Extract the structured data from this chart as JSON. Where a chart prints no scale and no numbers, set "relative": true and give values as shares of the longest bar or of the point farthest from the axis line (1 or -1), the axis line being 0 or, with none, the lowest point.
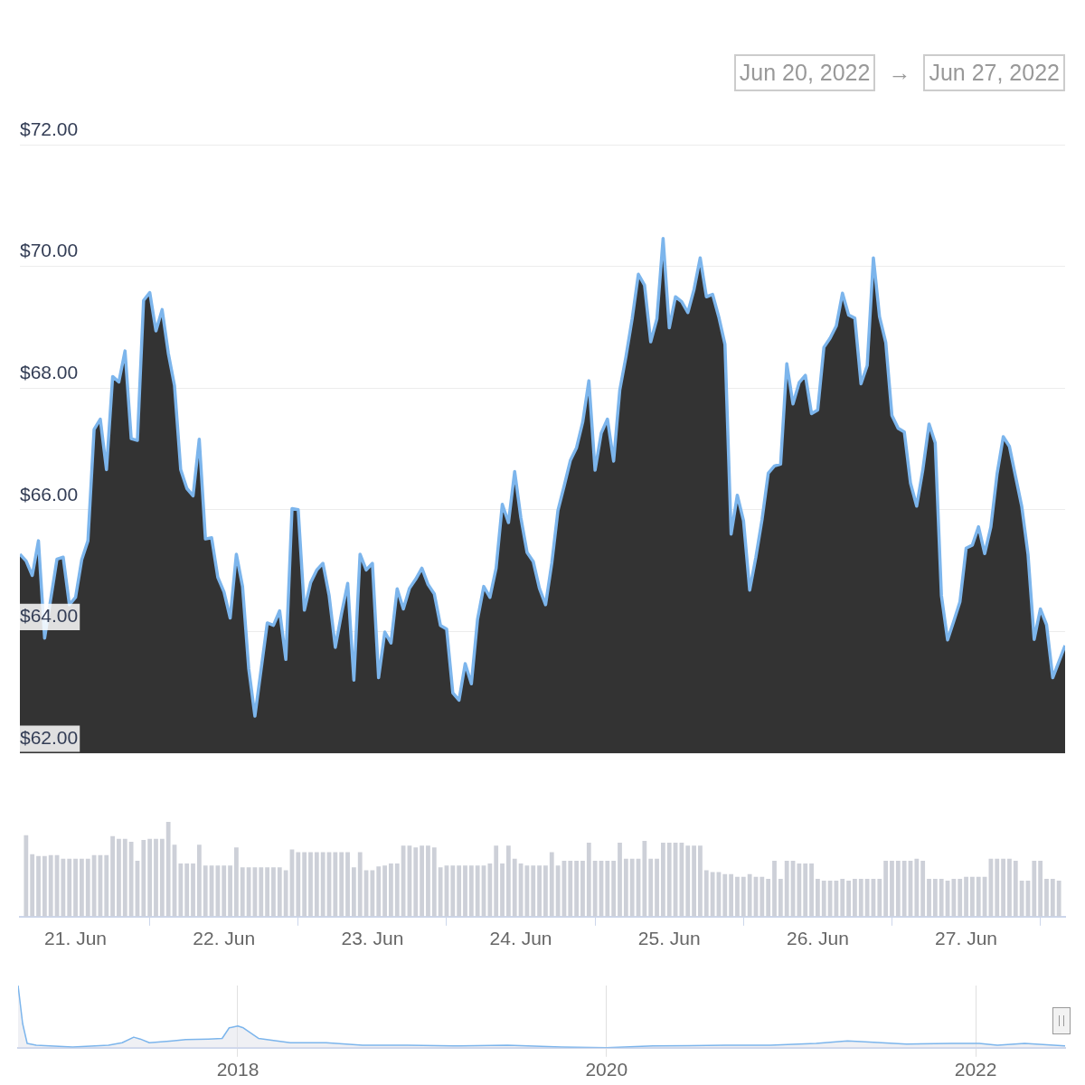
{
  "chart_data": [
    {
      "type": "area",
      "annotations": [
        "Jun 20, 2022",
        "→",
        "Jun 27, 2022"
      ],
      "color": "#7cb5ec",
      "x": [
        "2022-06-20T15:00",
        "2022-06-20T16:00",
        "2022-06-20T17:00",
        "2022-06-20T18:00",
        "2022-06-20T19:00",
        "2022-06-20T21:00",
        "2022-06-20T22:00",
        "2022-06-20T23:00",
        "2022-06-21T00:00",
        "2022-06-21T01:00",
        "2022-06-21T02:00",
        "2022-06-21T03:00",
        "2022-06-21T04:00",
        "2022-06-21T05:00",
        "2022-06-21T06:00",
        "2022-06-21T07:00",
        "2022-06-21T08:00",
        "2022-06-21T09:00",
        "2022-06-21T10:00",
        "2022-06-21T11:00",
        "2022-06-21T12:00",
        "2022-06-21T13:00",
        "2022-06-21T14:00",
        "2022-06-21T15:00",
        "2022-06-21T16:00",
        "2022-06-21T17:00",
        "2022-06-21T18:00",
        "2022-06-21T19:00",
        "2022-06-21T20:00",
        "2022-06-21T21:00",
        "2022-06-21T22:00",
        "2022-06-21T23:00",
        "2022-06-22T00:00",
        "2022-06-22T01:00",
        "2022-06-22T02:00",
        "2022-06-22T03:00",
        "2022-06-22T04:00",
        "2022-06-22T05:00",
        "2022-06-22T07:00",
        "2022-06-22T08:00",
        "2022-06-22T09:00",
        "2022-06-22T10:00",
        "2022-06-22T11:00",
        "2022-06-22T12:00",
        "2022-06-22T13:00",
        "2022-06-22T14:00",
        "2022-06-22T15:00",
        "2022-06-22T16:00",
        "2022-06-22T17:00",
        "2022-06-22T18:00",
        "2022-06-22T19:00",
        "2022-06-22T20:00",
        "2022-06-22T21:00",
        "2022-06-22T22:00",
        "2022-06-22T23:00",
        "2022-06-23T00:00",
        "2022-06-23T01:00",
        "2022-06-23T02:00",
        "2022-06-23T03:00",
        "2022-06-23T04:00",
        "2022-06-23T05:00",
        "2022-06-23T06:00",
        "2022-06-23T07:00",
        "2022-06-23T08:00",
        "2022-06-23T09:00",
        "2022-06-23T10:00",
        "2022-06-23T11:00",
        "2022-06-23T12:00",
        "2022-06-23T13:00",
        "2022-06-23T14:00",
        "2022-06-23T15:00",
        "2022-06-23T16:00",
        "2022-06-23T17:00",
        "2022-06-23T18:00",
        "2022-06-23T19:00",
        "2022-06-23T20:00",
        "2022-06-23T21:00",
        "2022-06-23T22:00",
        "2022-06-23T23:00",
        "2022-06-24T00:00",
        "2022-06-24T01:00",
        "2022-06-24T02:00",
        "2022-06-24T03:00",
        "2022-06-24T04:00",
        "2022-06-24T05:00",
        "2022-06-24T06:00",
        "2022-06-24T07:00",
        "2022-06-24T08:00",
        "2022-06-24T09:00",
        "2022-06-24T10:00",
        "2022-06-24T11:00",
        "2022-06-24T12:00",
        "2022-06-24T13:00",
        "2022-06-24T14:00",
        "2022-06-24T15:00",
        "2022-06-24T16:00",
        "2022-06-24T17:00",
        "2022-06-24T18:00",
        "2022-06-24T19:00",
        "2022-06-24T20:00",
        "2022-06-24T21:00",
        "2022-06-24T22:00",
        "2022-06-24T23:00",
        "2022-06-25T00:00",
        "2022-06-25T01:00",
        "2022-06-25T02:00",
        "2022-06-25T03:00",
        "2022-06-25T04:00",
        "2022-06-25T05:00",
        "2022-06-25T06:00",
        "2022-06-25T07:00",
        "2022-06-25T08:00",
        "2022-06-25T09:00",
        "2022-06-25T10:00",
        "2022-06-25T11:00",
        "2022-06-25T12:00",
        "2022-06-25T13:00",
        "2022-06-25T14:00",
        "2022-06-25T15:00",
        "2022-06-25T16:00",
        "2022-06-25T17:00",
        "2022-06-25T18:00",
        "2022-06-25T19:00",
        "2022-06-25T20:00",
        "2022-06-25T21:00",
        "2022-06-25T22:00",
        "2022-06-25T23:00",
        "2022-06-26T00:00",
        "2022-06-26T01:00",
        "2022-06-26T02:00",
        "2022-06-26T03:00",
        "2022-06-26T04:00",
        "2022-06-26T05:00",
        "2022-06-26T06:00",
        "2022-06-26T07:00",
        "2022-06-26T08:00",
        "2022-06-26T09:00",
        "2022-06-26T10:00",
        "2022-06-26T11:00",
        "2022-06-26T12:00",
        "2022-06-26T13:00",
        "2022-06-26T14:00",
        "2022-06-26T15:00",
        "2022-06-26T16:00",
        "2022-06-26T17:00",
        "2022-06-26T18:00",
        "2022-06-26T19:00",
        "2022-06-26T20:00",
        "2022-06-26T21:00",
        "2022-06-26T22:00",
        "2022-06-26T23:00",
        "2022-06-27T00:00",
        "2022-06-27T01:00",
        "2022-06-27T02:00",
        "2022-06-27T03:00",
        "2022-06-27T04:00",
        "2022-06-27T05:00",
        "2022-06-27T06:00",
        "2022-06-27T07:00",
        "2022-06-27T08:00",
        "2022-06-27T09:00",
        "2022-06-27T10:00",
        "2022-06-27T11:00",
        "2022-06-27T12:00",
        "2022-06-27T13:00",
        "2022-06-27T14:00",
        "2022-06-27T16:00"
      ],
      "values": [
        65.27,
        65.16,
        64.92,
        65.49,
        63.89,
        65.19,
        65.22,
        64.44,
        64.56,
        65.18,
        65.49,
        67.32,
        67.49,
        66.66,
        68.19,
        68.1,
        68.61,
        67.17,
        67.14,
        69.44,
        69.57,
        68.94,
        69.29,
        68.57,
        68.04,
        66.66,
        66.35,
        66.23,
        67.16,
        65.52,
        65.54,
        64.89,
        64.65,
        64.22,
        65.27,
        64.74,
        63.39,
        62.61,
        64.14,
        64.1,
        64.34,
        63.54,
        66.02,
        66.0,
        64.35,
        64.8,
        65.01,
        65.12,
        64.59,
        63.74,
        64.29,
        64.79,
        63.2,
        65.27,
        65.01,
        65.12,
        63.24,
        63.99,
        63.81,
        64.7,
        64.37,
        64.71,
        64.86,
        65.04,
        64.77,
        64.62,
        64.1,
        64.04,
        62.99,
        62.87,
        63.47,
        63.14,
        64.2,
        64.74,
        64.56,
        65.04,
        66.09,
        65.79,
        66.63,
        65.87,
        65.3,
        65.15,
        64.71,
        64.44,
        65.12,
        65.99,
        66.39,
        66.81,
        67.02,
        67.44,
        68.12,
        66.65,
        67.26,
        67.49,
        66.8,
        67.97,
        68.52,
        69.14,
        69.87,
        69.69,
        68.76,
        69.14,
        70.46,
        68.99,
        69.5,
        69.42,
        69.24,
        69.62,
        70.14,
        69.5,
        69.54,
        69.17,
        68.72,
        65.6,
        66.24,
        65.82,
        64.68,
        65.22,
        65.84,
        66.6,
        66.72,
        66.75,
        68.4,
        67.74,
        68.09,
        68.21,
        67.58,
        67.64,
        68.67,
        68.82,
        69.02,
        69.56,
        69.2,
        69.15,
        68.07,
        68.37,
        70.14,
        69.17,
        68.75,
        67.55,
        67.34,
        67.28,
        66.44,
        66.06,
        66.66,
        67.41,
        67.1,
        64.59,
        63.86,
        64.17,
        64.49,
        65.37,
        65.42,
        65.72,
        65.28,
        65.72,
        66.59,
        67.2,
        67.04,
        66.54,
        66.05,
        65.27,
        63.87,
        64.37,
        64.11,
        63.24,
        63.77
      ],
      "xlim": [
        "2022-06-20T15:00",
        "2022-06-27T16:00"
      ],
      "ylim": [
        62,
        72
      ],
      "yticks": [
        {
          "value": 62,
          "label": "$62.00"
        },
        {
          "value": 64,
          "label": "$64.00"
        },
        {
          "value": 66,
          "label": "$66.00"
        },
        {
          "value": 68,
          "label": "$68.00"
        },
        {
          "value": 70,
          "label": "$70.00"
        },
        {
          "value": 72,
          "label": "$72.00"
        }
      ],
      "grid": "y",
      "tick_labels": "y"
    },
    {
      "type": "bar",
      "relative": true,
      "color": "#cdd0d8",
      "x": [
        "2022-06-20T16:00",
        "2022-06-20T17:00",
        "2022-06-20T18:00",
        "2022-06-20T19:00",
        "2022-06-20T20:00",
        "2022-06-20T21:00",
        "2022-06-20T22:00",
        "2022-06-20T23:00",
        "2022-06-21T00:00",
        "2022-06-21T01:00",
        "2022-06-21T02:00",
        "2022-06-21T03:00",
        "2022-06-21T04:00",
        "2022-06-21T05:00",
        "2022-06-21T06:00",
        "2022-06-21T07:00",
        "2022-06-21T08:00",
        "2022-06-21T09:00",
        "2022-06-21T10:00",
        "2022-06-21T11:00",
        "2022-06-21T12:00",
        "2022-06-21T13:00",
        "2022-06-21T14:00",
        "2022-06-21T15:00",
        "2022-06-21T16:00",
        "2022-06-21T17:00",
        "2022-06-21T18:00",
        "2022-06-21T19:00",
        "2022-06-21T20:00",
        "2022-06-21T21:00",
        "2022-06-21T22:00",
        "2022-06-21T23:00",
        "2022-06-22T00:00",
        "2022-06-22T01:00",
        "2022-06-22T02:00",
        "2022-06-22T03:00",
        "2022-06-22T04:00",
        "2022-06-22T05:00",
        "2022-06-22T06:00",
        "2022-06-22T07:00",
        "2022-06-22T08:00",
        "2022-06-22T09:00",
        "2022-06-22T10:00",
        "2022-06-22T11:00",
        "2022-06-22T12:00",
        "2022-06-22T13:00",
        "2022-06-22T14:00",
        "2022-06-22T15:00",
        "2022-06-22T16:00",
        "2022-06-22T17:00",
        "2022-06-22T18:00",
        "2022-06-22T19:00",
        "2022-06-22T20:00",
        "2022-06-22T21:00",
        "2022-06-22T22:00",
        "2022-06-22T23:00",
        "2022-06-23T00:00",
        "2022-06-23T01:00",
        "2022-06-23T02:00",
        "2022-06-23T03:00",
        "2022-06-23T04:00",
        "2022-06-23T05:00",
        "2022-06-23T06:00",
        "2022-06-23T07:00",
        "2022-06-23T08:00",
        "2022-06-23T09:00",
        "2022-06-23T10:00",
        "2022-06-23T11:00",
        "2022-06-23T12:00",
        "2022-06-23T13:00",
        "2022-06-23T14:00",
        "2022-06-23T15:00",
        "2022-06-23T16:00",
        "2022-06-23T17:00",
        "2022-06-23T18:00",
        "2022-06-23T19:00",
        "2022-06-23T20:00",
        "2022-06-23T21:00",
        "2022-06-23T22:00",
        "2022-06-23T23:00",
        "2022-06-24T00:00",
        "2022-06-24T01:00",
        "2022-06-24T02:00",
        "2022-06-24T03:00",
        "2022-06-24T04:00",
        "2022-06-24T05:00",
        "2022-06-24T06:00",
        "2022-06-24T07:00",
        "2022-06-24T08:00",
        "2022-06-24T09:00",
        "2022-06-24T10:00",
        "2022-06-24T11:00",
        "2022-06-24T12:00",
        "2022-06-24T13:00",
        "2022-06-24T14:00",
        "2022-06-24T15:00",
        "2022-06-24T16:00",
        "2022-06-24T17:00",
        "2022-06-24T18:00",
        "2022-06-24T19:00",
        "2022-06-24T20:00",
        "2022-06-24T21:00",
        "2022-06-24T22:00",
        "2022-06-24T23:00",
        "2022-06-25T00:00",
        "2022-06-25T01:00",
        "2022-06-25T02:00",
        "2022-06-25T03:00",
        "2022-06-25T04:00",
        "2022-06-25T05:00",
        "2022-06-25T06:00",
        "2022-06-25T07:00",
        "2022-06-25T08:00",
        "2022-06-25T09:00",
        "2022-06-25T10:00",
        "2022-06-25T11:00",
        "2022-06-25T12:00",
        "2022-06-25T13:00",
        "2022-06-25T14:00",
        "2022-06-25T15:00",
        "2022-06-25T16:00",
        "2022-06-25T17:00",
        "2022-06-25T18:00",
        "2022-06-25T19:00",
        "2022-06-25T20:00",
        "2022-06-25T21:00",
        "2022-06-25T22:00",
        "2022-06-25T23:00",
        "2022-06-26T00:00",
        "2022-06-26T01:00",
        "2022-06-26T02:00",
        "2022-06-26T03:00",
        "2022-06-26T04:00",
        "2022-06-26T05:00",
        "2022-06-26T06:00",
        "2022-06-26T07:00",
        "2022-06-26T08:00",
        "2022-06-26T09:00",
        "2022-06-26T10:00",
        "2022-06-26T11:00",
        "2022-06-26T12:00",
        "2022-06-26T13:00",
        "2022-06-26T14:00",
        "2022-06-26T15:00",
        "2022-06-26T16:00",
        "2022-06-26T17:00",
        "2022-06-26T18:00",
        "2022-06-26T19:00",
        "2022-06-26T20:00",
        "2022-06-26T21:00",
        "2022-06-26T22:00",
        "2022-06-26T23:00",
        "2022-06-27T00:00",
        "2022-06-27T01:00",
        "2022-06-27T02:00",
        "2022-06-27T03:00",
        "2022-06-27T04:00",
        "2022-06-27T05:00",
        "2022-06-27T06:00",
        "2022-06-27T07:00",
        "2022-06-27T08:00",
        "2022-06-27T09:00",
        "2022-06-27T10:00",
        "2022-06-27T11:00",
        "2022-06-27T12:00",
        "2022-06-27T13:00",
        "2022-06-27T14:00",
        "2022-06-27T15:00"
      ],
      "values": [
        0.86,
        0.66,
        0.64,
        0.64,
        0.65,
        0.65,
        0.61,
        0.61,
        0.61,
        0.61,
        0.61,
        0.65,
        0.65,
        0.65,
        0.85,
        0.82,
        0.82,
        0.79,
        0.59,
        0.81,
        0.82,
        0.82,
        0.82,
        1.0,
        0.76,
        0.56,
        0.56,
        0.56,
        0.76,
        0.54,
        0.54,
        0.54,
        0.54,
        0.54,
        0.73,
        0.52,
        0.52,
        0.52,
        0.52,
        0.52,
        0.52,
        0.52,
        0.49,
        0.71,
        0.68,
        0.68,
        0.68,
        0.68,
        0.68,
        0.68,
        0.68,
        0.68,
        0.68,
        0.52,
        0.68,
        0.49,
        0.49,
        0.53,
        0.54,
        0.56,
        0.56,
        0.75,
        0.75,
        0.73,
        0.75,
        0.75,
        0.73,
        0.52,
        0.54,
        0.54,
        0.54,
        0.54,
        0.54,
        0.54,
        0.54,
        0.56,
        0.75,
        0.56,
        0.75,
        0.61,
        0.56,
        0.54,
        0.54,
        0.54,
        0.54,
        0.68,
        0.54,
        0.59,
        0.59,
        0.59,
        0.59,
        0.78,
        0.59,
        0.59,
        0.59,
        0.59,
        0.78,
        0.61,
        0.61,
        0.61,
        0.8,
        0.61,
        0.61,
        0.78,
        0.78,
        0.78,
        0.78,
        0.75,
        0.75,
        0.75,
        0.49,
        0.47,
        0.47,
        0.45,
        0.45,
        0.42,
        0.42,
        0.45,
        0.42,
        0.42,
        0.4,
        0.59,
        0.4,
        0.59,
        0.59,
        0.56,
        0.56,
        0.56,
        0.4,
        0.38,
        0.38,
        0.38,
        0.4,
        0.38,
        0.4,
        0.4,
        0.4,
        0.4,
        0.4,
        0.59,
        0.59,
        0.59,
        0.59,
        0.59,
        0.61,
        0.59,
        0.4,
        0.4,
        0.4,
        0.38,
        0.4,
        0.4,
        0.42,
        0.42,
        0.42,
        0.42,
        0.61,
        0.61,
        0.61,
        0.61,
        0.59,
        0.38,
        0.38,
        0.59,
        0.59,
        0.4,
        0.4,
        0.38
      ],
      "xlim": [
        "2022-06-20T15:00",
        "2022-06-27T16:00"
      ],
      "xticks": [
        {
          "value": "2022-06-21T00:00",
          "label": "21. Jun"
        },
        {
          "value": "2022-06-22T00:00",
          "label": "22. Jun"
        },
        {
          "value": "2022-06-23T00:00",
          "label": "23. Jun"
        },
        {
          "value": "2022-06-24T00:00",
          "label": "24. Jun"
        },
        {
          "value": "2022-06-25T00:00",
          "label": "25. Jun"
        },
        {
          "value": "2022-06-26T00:00",
          "label": "26. Jun"
        },
        {
          "value": "2022-06-27T00:00",
          "label": "27. Jun"
        }
      ],
      "tick_labels": "x"
    },
    {
      "type": "area",
      "relative": true,
      "color": "#7cb5ec",
      "x": [
        "2016-10-23",
        "2016-11-01",
        "2016-11-10",
        "2016-11-28",
        "2017-02-08",
        "2017-04-20",
        "2017-05-17",
        "2017-06-09",
        "2017-06-22",
        "2017-07-10",
        "2017-08-24",
        "2017-09-20",
        "2017-11-04",
        "2017-12-01",
        "2017-12-15",
        "2018-01-01",
        "2018-01-12",
        "2018-02-11",
        "2018-04-15",
        "2018-06-25",
        "2018-09-05",
        "2018-12-03",
        "2019-03-04",
        "2019-06-19",
        "2019-10-04",
        "2020-01-01",
        "2020-04-02",
        "2020-08-23",
        "2020-11-20",
        "2021-02-19",
        "2021-04-22",
        "2021-05-19",
        "2021-08-17",
        "2021-11-14",
        "2022-01-08",
        "2022-02-13",
        "2022-04-08",
        "2022-06-27"
      ],
      "values": [
        1.0,
        0.39,
        0.07,
        0.04,
        0.01,
        0.04,
        0.08,
        0.17,
        0.14,
        0.08,
        0.11,
        0.13,
        0.14,
        0.15,
        0.32,
        0.35,
        0.32,
        0.15,
        0.08,
        0.08,
        0.04,
        0.04,
        0.03,
        0.04,
        0.01,
        0,
        0.03,
        0.04,
        0.04,
        0.07,
        0.11,
        0.1,
        0.06,
        0.07,
        0.07,
        0.04,
        0.07,
        0.03
      ],
      "xlim": [
        "2016-10-23",
        "2022-06-27"
      ],
      "xticks": [
        {
          "value": "2018-01-01",
          "label": "2018"
        },
        {
          "value": "2020-01-01",
          "label": "2020"
        },
        {
          "value": "2022-01-01",
          "label": "2022"
        }
      ],
      "grid": "x",
      "tick_labels": "x"
    }
  ]
}
